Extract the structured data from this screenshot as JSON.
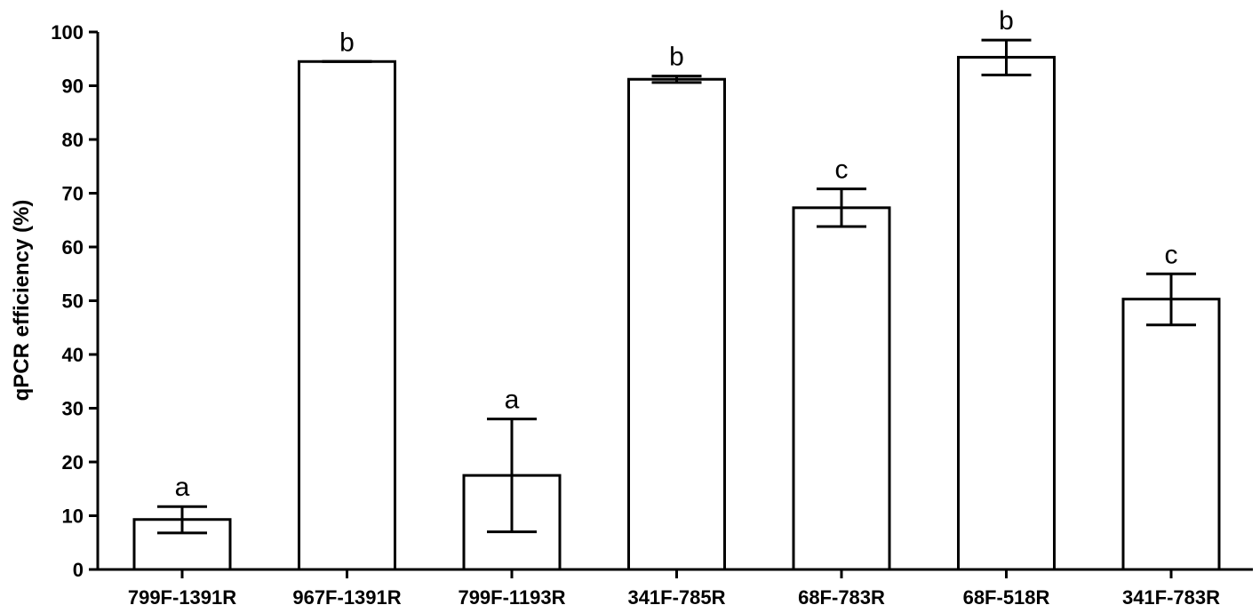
{
  "chart_data": {
    "type": "bar",
    "title": "",
    "xlabel": "",
    "ylabel": "qPCR efficiency (%)",
    "ylim": [
      0,
      100
    ],
    "yticks": [
      0,
      10,
      20,
      30,
      40,
      50,
      60,
      70,
      80,
      90,
      100
    ],
    "grid": false,
    "categories": [
      "799F-1391R",
      "967F-1391R",
      "799F-1193R",
      "341F-785R",
      "68F-783R",
      "68F-518R",
      "341F-783R"
    ],
    "values": [
      9.3,
      94.5,
      17.5,
      91.2,
      67.3,
      95.3,
      50.3
    ],
    "error_low": [
      6.8,
      94.5,
      7.0,
      90.6,
      63.8,
      92.0,
      45.5
    ],
    "error_high": [
      11.7,
      94.5,
      28.0,
      91.8,
      70.8,
      98.5,
      55.0
    ],
    "significance_labels": [
      "a",
      "b",
      "a",
      "b",
      "c",
      "b",
      "c"
    ],
    "colors": {
      "bar_fill": "#ffffff",
      "stroke": "#000000"
    }
  }
}
